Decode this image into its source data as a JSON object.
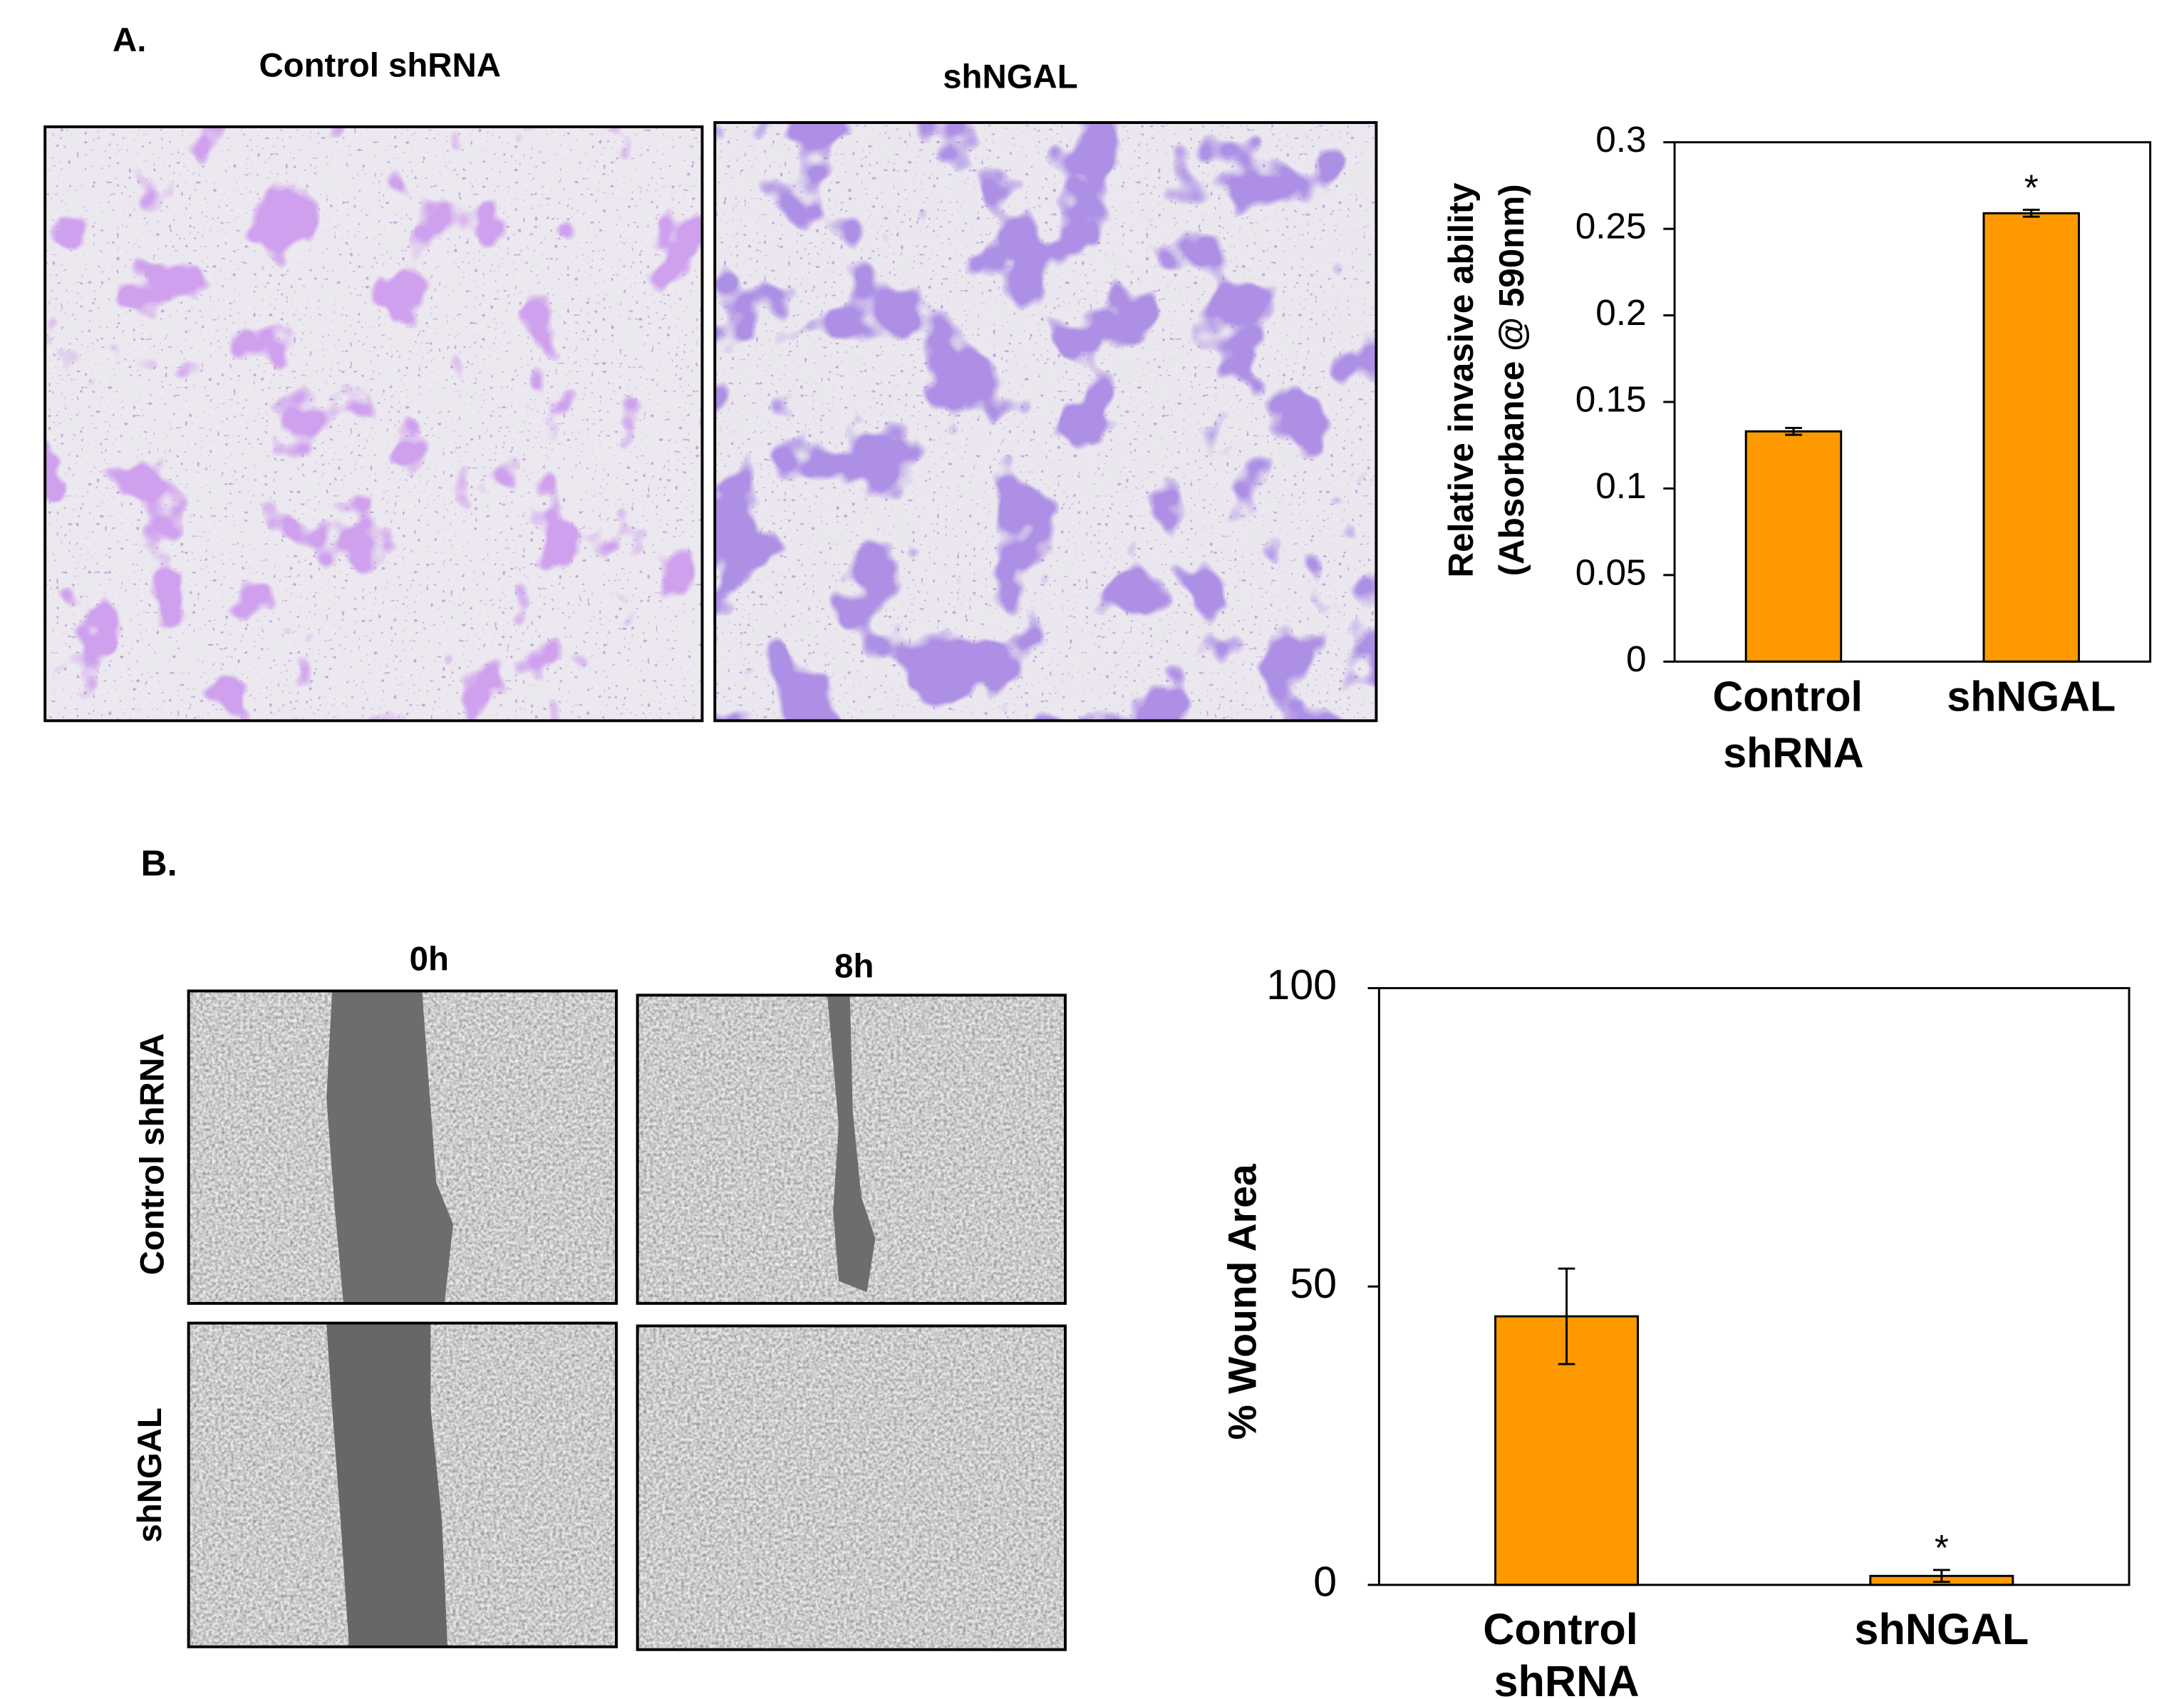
{
  "panel_a": {
    "label": "A.",
    "images": [
      "Control shRNA",
      "shNGAL"
    ]
  },
  "panel_b": {
    "label": "B.",
    "columns": [
      "0h",
      "8h"
    ],
    "rows": [
      "Control shRNA",
      "shNGAL"
    ]
  },
  "chart_data": [
    {
      "type": "bar",
      "ylabel": [
        "Relative invasive ability",
        "(Absorbance @ 590nm)"
      ],
      "categories": [
        "Control shRNA",
        "shNGAL"
      ],
      "values": [
        0.133,
        0.259
      ],
      "errors": [
        0.002,
        0.002
      ],
      "annotations": [
        null,
        "*"
      ],
      "color": "#ff9900",
      "ylim": [
        0,
        0.3
      ],
      "yticks": [
        0,
        0.05,
        0.1,
        0.15,
        0.2,
        0.25,
        0.3
      ]
    },
    {
      "type": "bar",
      "ylabel": [
        "% Wound Area"
      ],
      "categories": [
        "Control shRNA",
        "shNGAL"
      ],
      "values": [
        45,
        1.5
      ],
      "errors": [
        8,
        1
      ],
      "annotations": [
        null,
        "*"
      ],
      "color": "#ff9900",
      "ylim": [
        0,
        100
      ],
      "yticks": [
        0,
        50,
        100
      ]
    }
  ]
}
